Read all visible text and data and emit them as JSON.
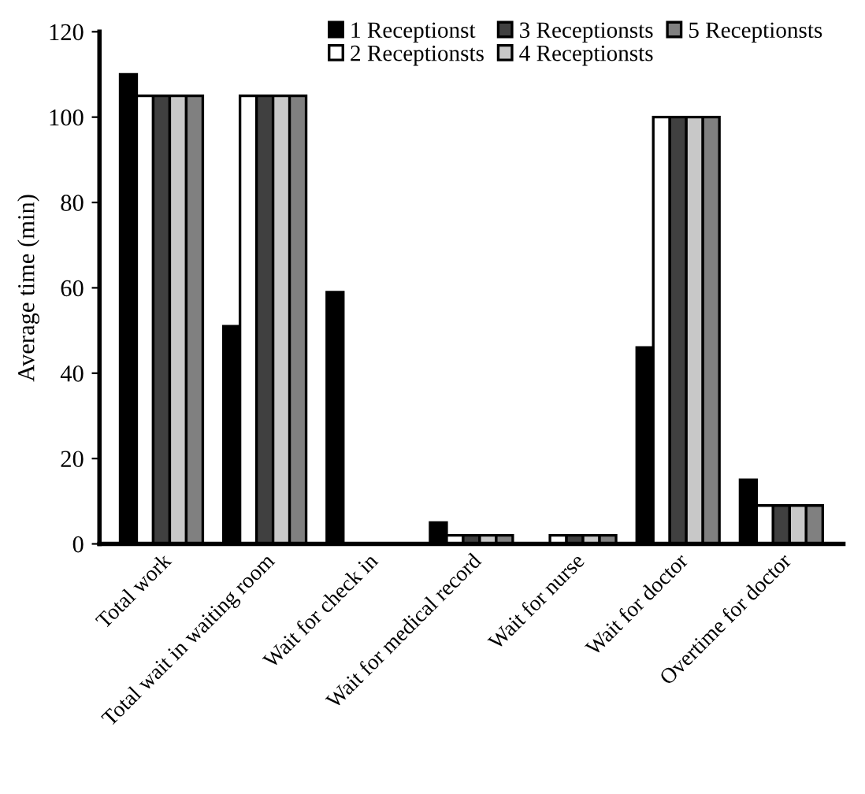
{
  "chart_data": {
    "type": "bar",
    "ylabel": "Average time (min)",
    "categories": [
      "Total work",
      "Total wait in waiting room",
      "Wait for check in",
      "Wait for medical record",
      "Wait for nurse",
      "Wait for doctor",
      "Overtime for doctor"
    ],
    "series": [
      {
        "name": "1 Receptionst",
        "color": "#000000",
        "values": [
          110,
          51,
          59,
          5,
          null,
          46,
          15
        ]
      },
      {
        "name": "2 Receptionsts",
        "color": "#ffffff",
        "values": [
          105,
          105,
          null,
          2,
          2,
          100,
          9
        ]
      },
      {
        "name": "3 Receptionsts",
        "color": "#404040",
        "values": [
          105,
          105,
          null,
          2,
          2,
          100,
          9
        ]
      },
      {
        "name": "4 Receptionsts",
        "color": "#c8c8c8",
        "values": [
          105,
          105,
          null,
          2,
          2,
          100,
          9
        ]
      },
      {
        "name": "5 Receptionsts",
        "color": "#808080",
        "values": [
          105,
          105,
          null,
          2,
          2,
          100,
          9
        ]
      }
    ],
    "ylim": [
      0,
      120
    ],
    "yticks": [
      0,
      20,
      40,
      60,
      80,
      100,
      120
    ],
    "grid": false,
    "legend": "top right"
  }
}
